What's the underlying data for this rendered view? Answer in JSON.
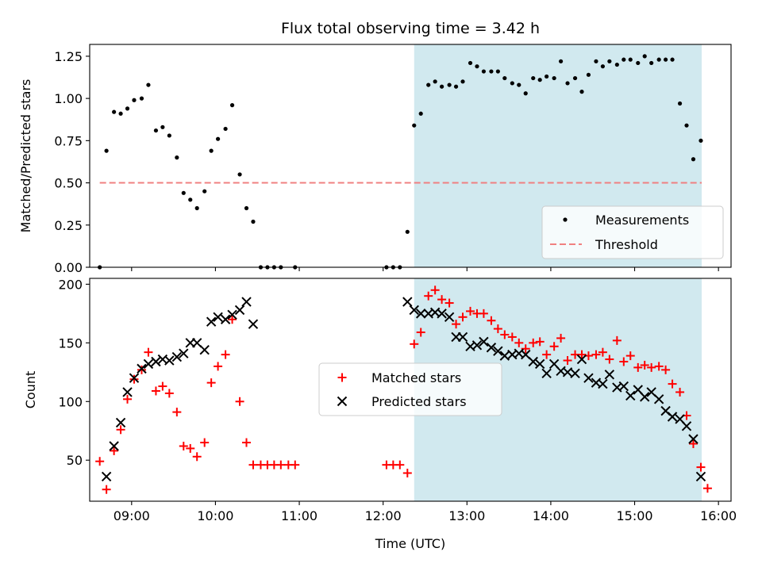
{
  "chart_data": [
    {
      "type": "scatter",
      "title": "Flux total observing time = 3.42 h",
      "xlabel": "",
      "ylabel": "Matched/Predicted stars",
      "xlim": [
        8.5,
        16.15
      ],
      "ylim": [
        0,
        1.32
      ],
      "x_tick_labels": [
        "09:00",
        "10:00",
        "11:00",
        "12:00",
        "13:00",
        "14:00",
        "15:00",
        "16:00"
      ],
      "y_ticks": [
        0.0,
        0.25,
        0.5,
        0.75,
        1.0,
        1.25
      ],
      "y_tick_labels": [
        "0.00",
        "0.25",
        "0.50",
        "0.75",
        "1.00",
        "1.25"
      ],
      "shaded_region": {
        "x": [
          12.37,
          15.8
        ],
        "color": "#d1e9ef"
      },
      "legend_position": "lower right",
      "series": [
        {
          "name": "Measurements",
          "color": "#000000",
          "marker": "dot",
          "points": [
            [
              8.62,
              0.0
            ],
            [
              8.7,
              0.69
            ],
            [
              8.79,
              0.92
            ],
            [
              8.87,
              0.91
            ],
            [
              8.95,
              0.94
            ],
            [
              9.03,
              0.99
            ],
            [
              9.12,
              1.0
            ],
            [
              9.2,
              1.08
            ],
            [
              9.29,
              0.81
            ],
            [
              9.37,
              0.83
            ],
            [
              9.45,
              0.78
            ],
            [
              9.54,
              0.65
            ],
            [
              9.62,
              0.44
            ],
            [
              9.7,
              0.4
            ],
            [
              9.78,
              0.35
            ],
            [
              9.87,
              0.45
            ],
            [
              9.95,
              0.69
            ],
            [
              10.03,
              0.76
            ],
            [
              10.12,
              0.82
            ],
            [
              10.2,
              0.96
            ],
            [
              10.29,
              0.55
            ],
            [
              10.37,
              0.35
            ],
            [
              10.45,
              0.27
            ],
            [
              10.54,
              0.0
            ],
            [
              10.62,
              0.0
            ],
            [
              10.7,
              0.0
            ],
            [
              10.78,
              0.0
            ],
            [
              10.95,
              0.0
            ],
            [
              12.04,
              0.0
            ],
            [
              12.12,
              0.0
            ],
            [
              12.2,
              0.0
            ],
            [
              12.29,
              0.21
            ],
            [
              12.37,
              0.84
            ],
            [
              12.45,
              0.91
            ],
            [
              12.54,
              1.08
            ],
            [
              12.62,
              1.1
            ],
            [
              12.7,
              1.07
            ],
            [
              12.79,
              1.08
            ],
            [
              12.87,
              1.07
            ],
            [
              12.95,
              1.1
            ],
            [
              13.04,
              1.21
            ],
            [
              13.12,
              1.19
            ],
            [
              13.2,
              1.16
            ],
            [
              13.29,
              1.16
            ],
            [
              13.37,
              1.16
            ],
            [
              13.45,
              1.12
            ],
            [
              13.54,
              1.09
            ],
            [
              13.62,
              1.08
            ],
            [
              13.7,
              1.03
            ],
            [
              13.79,
              1.12
            ],
            [
              13.87,
              1.11
            ],
            [
              13.95,
              1.13
            ],
            [
              14.04,
              1.12
            ],
            [
              14.12,
              1.22
            ],
            [
              14.2,
              1.09
            ],
            [
              14.29,
              1.12
            ],
            [
              14.37,
              1.04
            ],
            [
              14.45,
              1.14
            ],
            [
              14.54,
              1.22
            ],
            [
              14.62,
              1.19
            ],
            [
              14.7,
              1.22
            ],
            [
              14.79,
              1.2
            ],
            [
              14.87,
              1.23
            ],
            [
              14.95,
              1.23
            ],
            [
              15.04,
              1.21
            ],
            [
              15.12,
              1.25
            ],
            [
              15.2,
              1.21
            ],
            [
              15.29,
              1.23
            ],
            [
              15.37,
              1.23
            ],
            [
              15.45,
              1.23
            ],
            [
              15.54,
              0.97
            ],
            [
              15.62,
              0.84
            ],
            [
              15.7,
              0.64
            ],
            [
              15.79,
              0.75
            ]
          ]
        },
        {
          "name": "Threshold",
          "color": "#f08080",
          "line_style": "dashed",
          "points": [
            [
              8.62,
              0.5
            ],
            [
              15.8,
              0.5
            ]
          ]
        }
      ]
    },
    {
      "type": "scatter",
      "title": "",
      "xlabel": "Time (UTC)",
      "ylabel": "Count",
      "xlim": [
        8.5,
        16.15
      ],
      "ylim": [
        15,
        205
      ],
      "x_ticks": [
        9,
        10,
        11,
        12,
        13,
        14,
        15,
        16
      ],
      "x_tick_labels": [
        "09:00",
        "10:00",
        "11:00",
        "12:00",
        "13:00",
        "14:00",
        "15:00",
        "16:00"
      ],
      "y_ticks": [
        50,
        100,
        150,
        200
      ],
      "y_tick_labels": [
        "50",
        "100",
        "150",
        "200"
      ],
      "shaded_region": {
        "x": [
          12.37,
          15.8
        ],
        "color": "#d1e9ef"
      },
      "legend_position": "center",
      "series": [
        {
          "name": "Matched stars",
          "color": "#ff0000",
          "marker": "plus",
          "points": [
            [
              8.62,
              49
            ],
            [
              8.7,
              25
            ],
            [
              8.79,
              58
            ],
            [
              8.87,
              76
            ],
            [
              8.95,
              102
            ],
            [
              9.03,
              119
            ],
            [
              9.12,
              127
            ],
            [
              9.2,
              142
            ],
            [
              9.29,
              109
            ],
            [
              9.37,
              113
            ],
            [
              9.45,
              107
            ],
            [
              9.54,
              91
            ],
            [
              9.62,
              62
            ],
            [
              9.7,
              60
            ],
            [
              9.78,
              53
            ],
            [
              9.87,
              65
            ],
            [
              9.95,
              116
            ],
            [
              10.03,
              130
            ],
            [
              10.12,
              140
            ],
            [
              10.2,
              170
            ],
            [
              10.29,
              100
            ],
            [
              10.37,
              65
            ],
            [
              10.45,
              46
            ],
            [
              10.54,
              46
            ],
            [
              10.62,
              46
            ],
            [
              10.7,
              46
            ],
            [
              10.78,
              46
            ],
            [
              10.87,
              46
            ],
            [
              10.95,
              46
            ],
            [
              12.04,
              46
            ],
            [
              12.12,
              46
            ],
            [
              12.2,
              46
            ],
            [
              12.29,
              39
            ],
            [
              12.37,
              149
            ],
            [
              12.45,
              159
            ],
            [
              12.54,
              190
            ],
            [
              12.62,
              195
            ],
            [
              12.7,
              187
            ],
            [
              12.79,
              184
            ],
            [
              12.87,
              166
            ],
            [
              12.95,
              172
            ],
            [
              13.04,
              177
            ],
            [
              13.12,
              175
            ],
            [
              13.2,
              175
            ],
            [
              13.29,
              169
            ],
            [
              13.37,
              162
            ],
            [
              13.45,
              157
            ],
            [
              13.54,
              155
            ],
            [
              13.62,
              150
            ],
            [
              13.7,
              145
            ],
            [
              13.79,
              150
            ],
            [
              13.87,
              151
            ],
            [
              13.95,
              140
            ],
            [
              14.04,
              147
            ],
            [
              14.12,
              154
            ],
            [
              14.2,
              135
            ],
            [
              14.29,
              140
            ],
            [
              14.37,
              140
            ],
            [
              14.45,
              139
            ],
            [
              14.54,
              140
            ],
            [
              14.62,
              142
            ],
            [
              14.7,
              136
            ],
            [
              14.79,
              152
            ],
            [
              14.87,
              134
            ],
            [
              14.95,
              139
            ],
            [
              15.04,
              129
            ],
            [
              15.12,
              131
            ],
            [
              15.2,
              129
            ],
            [
              15.29,
              130
            ],
            [
              15.37,
              127
            ],
            [
              15.45,
              115
            ],
            [
              15.54,
              108
            ],
            [
              15.62,
              88
            ],
            [
              15.7,
              64
            ],
            [
              15.79,
              44
            ],
            [
              15.87,
              26
            ]
          ]
        },
        {
          "name": "Predicted stars",
          "color": "#000000",
          "marker": "x",
          "points": [
            [
              8.7,
              36
            ],
            [
              8.79,
              62
            ],
            [
              8.87,
              82
            ],
            [
              8.95,
              108
            ],
            [
              9.03,
              120
            ],
            [
              9.12,
              128
            ],
            [
              9.2,
              132
            ],
            [
              9.29,
              134
            ],
            [
              9.37,
              136
            ],
            [
              9.45,
              135
            ],
            [
              9.54,
              138
            ],
            [
              9.62,
              141
            ],
            [
              9.7,
              150
            ],
            [
              9.78,
              150
            ],
            [
              9.87,
              144
            ],
            [
              9.95,
              168
            ],
            [
              10.03,
              172
            ],
            [
              10.12,
              170
            ],
            [
              10.2,
              174
            ],
            [
              10.29,
              178
            ],
            [
              10.37,
              185
            ],
            [
              10.45,
              166
            ],
            [
              12.29,
              185
            ],
            [
              12.37,
              178
            ],
            [
              12.45,
              175
            ],
            [
              12.54,
              175
            ],
            [
              12.62,
              176
            ],
            [
              12.7,
              175
            ],
            [
              12.79,
              172
            ],
            [
              12.87,
              155
            ],
            [
              12.95,
              155
            ],
            [
              13.04,
              147
            ],
            [
              13.12,
              148
            ],
            [
              13.2,
              151
            ],
            [
              13.29,
              146
            ],
            [
              13.37,
              143
            ],
            [
              13.45,
              139
            ],
            [
              13.54,
              140
            ],
            [
              13.62,
              141
            ],
            [
              13.7,
              140
            ],
            [
              13.79,
              134
            ],
            [
              13.87,
              132
            ],
            [
              13.95,
              124
            ],
            [
              14.04,
              132
            ],
            [
              14.12,
              126
            ],
            [
              14.2,
              125
            ],
            [
              14.29,
              124
            ],
            [
              14.37,
              136
            ],
            [
              14.45,
              120
            ],
            [
              14.54,
              116
            ],
            [
              14.62,
              115
            ],
            [
              14.7,
              123
            ],
            [
              14.79,
              112
            ],
            [
              14.87,
              113
            ],
            [
              14.95,
              105
            ],
            [
              15.04,
              110
            ],
            [
              15.12,
              104
            ],
            [
              15.2,
              108
            ],
            [
              15.29,
              102
            ],
            [
              15.37,
              92
            ],
            [
              15.45,
              87
            ],
            [
              15.54,
              85
            ],
            [
              15.62,
              79
            ],
            [
              15.7,
              68
            ],
            [
              15.79,
              36
            ]
          ]
        }
      ]
    }
  ]
}
